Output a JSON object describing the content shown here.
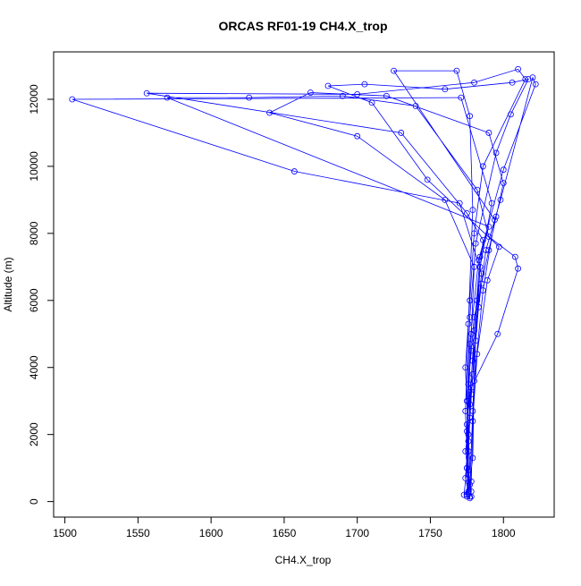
{
  "chart_data": {
    "type": "line",
    "title": "ORCAS RF01-19 CH4.X_trop",
    "x_label": "CH4.X_trop",
    "y_label": "Altitude (m)",
    "xlim": [
      1492.3,
      1834.7
    ],
    "ylim": [
      -464,
      13414
    ],
    "xticks": [
      1500,
      1550,
      1600,
      1650,
      1700,
      1750,
      1800
    ],
    "yticks": [
      0,
      2000,
      4000,
      6000,
      8000,
      10000,
      12000
    ],
    "series": [
      {
        "color": "#0000ff",
        "x": [
          1775,
          1776,
          1774,
          1777,
          1776,
          1778,
          1780,
          1785,
          1790,
          1795,
          1800,
          1790,
          1720,
          1668,
          1640,
          1700,
          1760,
          1780,
          1778,
          1776,
          1775,
          1773,
          1778,
          1776,
          1779,
          1782,
          1786,
          1775,
          1730,
          1556,
          1700,
          1780,
          1810,
          1815,
          1786,
          1780,
          1777,
          1774,
          1776,
          1778,
          1777,
          1779,
          1781,
          1784,
          1792,
          1771,
          1505,
          1657,
          1770,
          1785,
          1779,
          1775,
          1777,
          1774,
          1778,
          1783,
          1788,
          1798,
          1820,
          1822,
          1800,
          1783,
          1777,
          1775,
          1776,
          1779,
          1780,
          1786,
          1794,
          1725,
          1768,
          1777,
          1779,
          1776,
          1774,
          1776,
          1775,
          1777,
          1780,
          1784,
          1790,
          1570,
          1626,
          1690,
          1740,
          1782,
          1790,
          1808,
          1810,
          1796,
          1778,
          1776,
          1775,
          1778,
          1779,
          1782,
          1789,
          1797,
          1748,
          1710,
          1680,
          1705,
          1760,
          1806,
          1817,
          1805,
          1795,
          1781,
          1777,
          1775,
          1776,
          1777
        ],
        "values": [
          150,
          800,
          1500,
          2500,
          3500,
          4500,
          5500,
          6500,
          7500,
          8500,
          9500,
          11000,
          12100,
          12200,
          11600,
          10900,
          9000,
          7000,
          5000,
          3000,
          1000,
          200,
          300,
          1800,
          3800,
          6000,
          7800,
          8600,
          11000,
          12180,
          12150,
          12500,
          12900,
          12600,
          10000,
          8000,
          6000,
          4000,
          2000,
          150,
          500,
          2700,
          4800,
          7000,
          8900,
          12050,
          12000,
          9850,
          8900,
          6800,
          4200,
          2300,
          100,
          700,
          3200,
          5800,
          7500,
          9000,
          12650,
          12450,
          9900,
          7200,
          4700,
          2100,
          300,
          1300,
          3600,
          6300,
          8400,
          12850,
          12850,
          11500,
          8700,
          5300,
          2700,
          250,
          1000,
          2900,
          5100,
          7300,
          8200,
          12050,
          12050,
          12100,
          11800,
          9300,
          7900,
          7300,
          6950,
          5000,
          3400,
          1500,
          200,
          600,
          2400,
          4400,
          6600,
          7600,
          9600,
          11900,
          12400,
          12450,
          12300,
          12500,
          12600,
          11550,
          10400,
          7700,
          5500,
          3000,
          800,
          150
        ]
      }
    ]
  }
}
